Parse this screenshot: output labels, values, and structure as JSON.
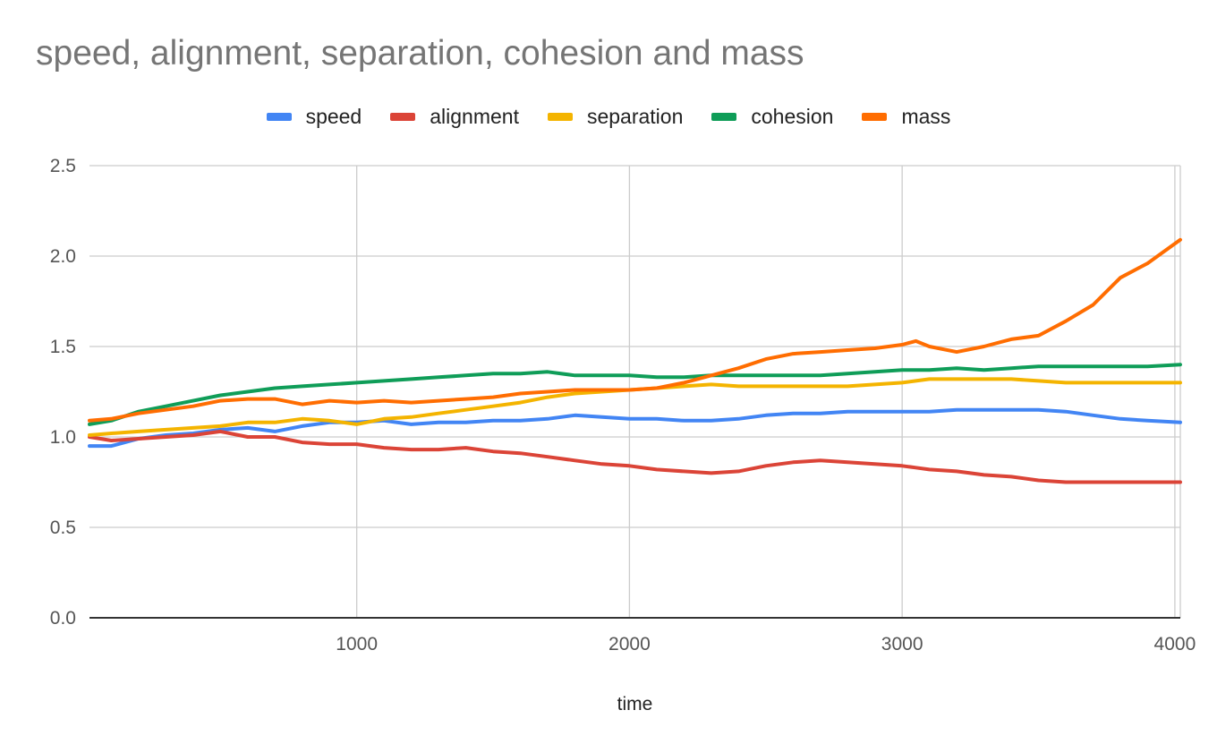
{
  "chart_data": {
    "type": "line",
    "title": "speed, alignment, separation, cohesion and mass",
    "xlabel": "time",
    "ylabel": "",
    "xlim": [
      20,
      4020
    ],
    "ylim": [
      0,
      2.5
    ],
    "x_ticks": [
      1000,
      2000,
      3000,
      4000
    ],
    "x_tick_labels": [
      "1000",
      "2000",
      "3000",
      "4000"
    ],
    "y_ticks": [
      0,
      0.5,
      1.0,
      1.5,
      2.0,
      2.5
    ],
    "y_tick_labels": [
      "0.0",
      "0.5",
      "1.0",
      "1.5",
      "2.0",
      "2.5"
    ],
    "grid": true,
    "legend_position": "top",
    "x": [
      20,
      100,
      200,
      300,
      400,
      500,
      600,
      700,
      800,
      900,
      1000,
      1100,
      1200,
      1300,
      1400,
      1500,
      1600,
      1700,
      1800,
      1900,
      2000,
      2100,
      2200,
      2300,
      2400,
      2500,
      2600,
      2700,
      2800,
      2900,
      3000,
      3050,
      3100,
      3200,
      3300,
      3400,
      3500,
      3600,
      3700,
      3800,
      3900,
      4020
    ],
    "series": [
      {
        "name": "speed",
        "color": "#4285f4",
        "values": [
          0.95,
          0.95,
          0.99,
          1.01,
          1.02,
          1.04,
          1.05,
          1.03,
          1.06,
          1.08,
          1.08,
          1.09,
          1.07,
          1.08,
          1.08,
          1.09,
          1.09,
          1.1,
          1.12,
          1.11,
          1.1,
          1.1,
          1.09,
          1.09,
          1.1,
          1.12,
          1.13,
          1.13,
          1.14,
          1.14,
          1.14,
          1.14,
          1.14,
          1.15,
          1.15,
          1.15,
          1.15,
          1.14,
          1.12,
          1.1,
          1.09,
          1.08
        ]
      },
      {
        "name": "alignment",
        "color": "#db4437",
        "values": [
          1.0,
          0.98,
          0.99,
          1.0,
          1.01,
          1.03,
          1.0,
          1.0,
          0.97,
          0.96,
          0.96,
          0.94,
          0.93,
          0.93,
          0.94,
          0.92,
          0.91,
          0.89,
          0.87,
          0.85,
          0.84,
          0.82,
          0.81,
          0.8,
          0.81,
          0.84,
          0.86,
          0.87,
          0.86,
          0.85,
          0.84,
          0.83,
          0.82,
          0.81,
          0.79,
          0.78,
          0.76,
          0.75,
          0.75,
          0.75,
          0.75,
          0.75
        ]
      },
      {
        "name": "separation",
        "color": "#f4b400",
        "values": [
          1.01,
          1.02,
          1.03,
          1.04,
          1.05,
          1.06,
          1.08,
          1.08,
          1.1,
          1.09,
          1.07,
          1.1,
          1.11,
          1.13,
          1.15,
          1.17,
          1.19,
          1.22,
          1.24,
          1.25,
          1.26,
          1.27,
          1.28,
          1.29,
          1.28,
          1.28,
          1.28,
          1.28,
          1.28,
          1.29,
          1.3,
          1.31,
          1.32,
          1.32,
          1.32,
          1.32,
          1.31,
          1.3,
          1.3,
          1.3,
          1.3,
          1.3
        ]
      },
      {
        "name": "cohesion",
        "color": "#0f9d58",
        "values": [
          1.07,
          1.09,
          1.14,
          1.17,
          1.2,
          1.23,
          1.25,
          1.27,
          1.28,
          1.29,
          1.3,
          1.31,
          1.32,
          1.33,
          1.34,
          1.35,
          1.35,
          1.36,
          1.34,
          1.34,
          1.34,
          1.33,
          1.33,
          1.34,
          1.34,
          1.34,
          1.34,
          1.34,
          1.35,
          1.36,
          1.37,
          1.37,
          1.37,
          1.38,
          1.37,
          1.38,
          1.39,
          1.39,
          1.39,
          1.39,
          1.39,
          1.4
        ]
      },
      {
        "name": "mass",
        "color": "#ff6d01",
        "values": [
          1.09,
          1.1,
          1.13,
          1.15,
          1.17,
          1.2,
          1.21,
          1.21,
          1.18,
          1.2,
          1.19,
          1.2,
          1.19,
          1.2,
          1.21,
          1.22,
          1.24,
          1.25,
          1.26,
          1.26,
          1.26,
          1.27,
          1.3,
          1.34,
          1.38,
          1.43,
          1.46,
          1.47,
          1.48,
          1.49,
          1.51,
          1.53,
          1.5,
          1.47,
          1.5,
          1.54,
          1.56,
          1.64,
          1.73,
          1.88,
          1.96,
          2.09
        ]
      }
    ]
  }
}
